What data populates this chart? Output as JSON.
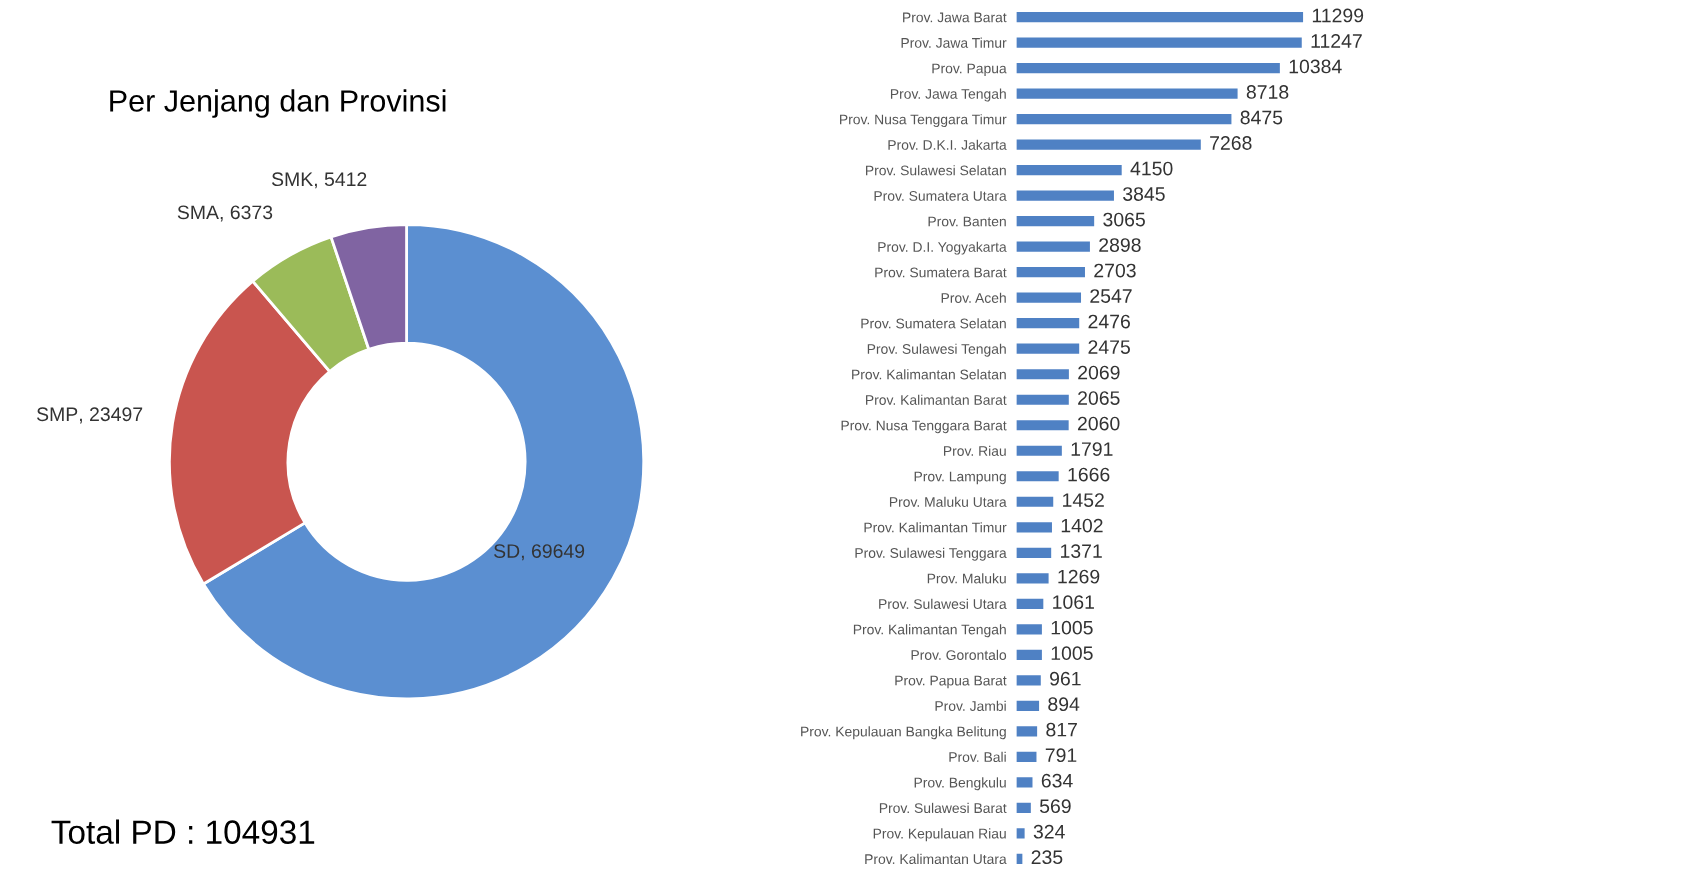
{
  "chart_data": [
    {
      "type": "donut",
      "title": "Per Jenjang dan Provinsi",
      "categories": [
        "SD",
        "SMP",
        "SMA",
        "SMK"
      ],
      "values": [
        69649,
        23497,
        6373,
        5412
      ],
      "colors": [
        "#5b8fd1",
        "#c9554f",
        "#9bbb59",
        "#8064a2"
      ],
      "value_labels": [
        ", 69649",
        ", 23497",
        ", 6373",
        ", 5412"
      ],
      "annotations": [
        "Total PD : 104931"
      ]
    },
    {
      "type": "bar",
      "orientation": "horizontal",
      "color": "#4f81c4",
      "data_labels": true,
      "categories": [
        "Prov. Jawa Barat",
        "Prov. Jawa Timur",
        "Prov. Papua",
        "Prov. Jawa Tengah",
        "Prov. Nusa Tenggara Timur",
        "Prov. D.K.I. Jakarta",
        "Prov. Sulawesi Selatan",
        "Prov. Sumatera Utara",
        "Prov. Banten",
        "Prov. D.I. Yogyakarta",
        "Prov. Sumatera Barat",
        "Prov. Aceh",
        "Prov. Sumatera Selatan",
        "Prov. Sulawesi Tengah",
        "Prov. Kalimantan Selatan",
        "Prov. Kalimantan Barat",
        "Prov. Nusa Tenggara Barat",
        "Prov. Riau",
        "Prov. Lampung",
        "Prov. Maluku Utara",
        "Prov. Kalimantan Timur",
        "Prov. Sulawesi Tenggara",
        "Prov. Maluku",
        "Prov. Sulawesi Utara",
        "Prov. Kalimantan Tengah",
        "Prov. Gorontalo",
        "Prov. Papua Barat",
        "Prov. Jambi",
        "Prov. Kepulauan Bangka Belitung",
        "Prov. Bali",
        "Prov. Bengkulu",
        "Prov. Sulawesi Barat",
        "Prov. Kepulauan Riau",
        "Prov. Kalimantan Utara"
      ],
      "values": [
        11299,
        11247,
        10384,
        8718,
        8475,
        7268,
        4150,
        3845,
        3065,
        2898,
        2703,
        2547,
        2476,
        2475,
        2069,
        2065,
        2060,
        1791,
        1666,
        1452,
        1402,
        1371,
        1269,
        1061,
        1005,
        1005,
        961,
        894,
        817,
        791,
        634,
        569,
        324,
        235
      ]
    }
  ]
}
